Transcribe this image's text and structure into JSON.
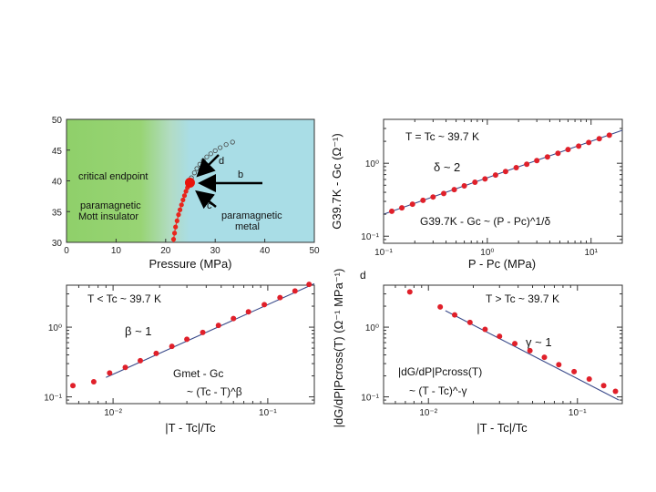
{
  "chart_data": [
    {
      "type": "phase-diagram",
      "xlabel": "Pressure (MPa)",
      "ylabel": "",
      "xlim": [
        0,
        50
      ],
      "ylim": [
        30,
        50
      ],
      "x_ticks": [
        "0",
        "10",
        "20",
        "30",
        "40",
        "50"
      ],
      "y_ticks": [
        "30",
        "35",
        "40",
        "45",
        "50"
      ],
      "regions": [
        {
          "name": "paramagnetic Mott insulator",
          "color": "#8fd06a",
          "lines": [
            "paramagnetic",
            "Mott insulator"
          ]
        },
        {
          "name": "paramagnetic metal",
          "color": "#a9dde6",
          "lines": [
            "paramagnetic",
            "metal"
          ]
        }
      ],
      "boundary_filled": {
        "x": [
          21.6,
          21.8,
          22.0,
          22.3,
          22.6,
          22.9,
          23.2,
          23.5,
          23.8,
          24.1,
          24.4,
          24.7
        ],
        "y": [
          30.5,
          31.5,
          32.5,
          33.5,
          34.5,
          35.3,
          36.1,
          36.9,
          37.6,
          38.3,
          38.9,
          39.5
        ]
      },
      "boundary_open": {
        "x": [
          25.2,
          25.8,
          26.3,
          26.9,
          27.6,
          28.3,
          29.1,
          30.0,
          31.0,
          32.2,
          33.5
        ],
        "y": [
          40.5,
          41.3,
          42.0,
          42.7,
          43.3,
          43.9,
          44.4,
          44.9,
          45.4,
          45.9,
          46.3
        ]
      },
      "critical_endpoint": {
        "x": 24.9,
        "y": 39.7,
        "label": "critical endpoint"
      },
      "arrows": [
        "d",
        "b",
        "c"
      ]
    },
    {
      "type": "scatter",
      "scale": "log-log",
      "xlabel": "P - Pc (MPa)",
      "ylabel": "G39.7K - Gc (Ω⁻¹)",
      "xlim": [
        0.1,
        20
      ],
      "ylim": [
        0.08,
        4
      ],
      "x_ticks": [
        "10⁻¹",
        "10⁰",
        "10¹"
      ],
      "y_ticks": [
        "10⁻¹",
        "10⁰"
      ],
      "annotations": [
        "T = Tc ~ 39.7 K",
        "δ ~ 2",
        "G39.7K - Gc ~ (P - Pc)^1/δ"
      ],
      "fit": {
        "x": [
          0.1,
          20
        ],
        "y": [
          0.2,
          2.83
        ]
      },
      "points": {
        "x": [
          0.12,
          0.15,
          0.19,
          0.24,
          0.3,
          0.38,
          0.48,
          0.6,
          0.76,
          0.95,
          1.2,
          1.5,
          1.9,
          2.4,
          3.0,
          3.8,
          4.8,
          6.0,
          7.6,
          9.5,
          12,
          15
        ],
        "y": [
          0.22,
          0.245,
          0.275,
          0.31,
          0.345,
          0.385,
          0.435,
          0.49,
          0.55,
          0.61,
          0.69,
          0.77,
          0.87,
          0.97,
          1.09,
          1.22,
          1.37,
          1.54,
          1.72,
          1.93,
          2.17,
          2.43
        ]
      }
    },
    {
      "type": "scatter",
      "scale": "log-log",
      "xlabel": "|T - Tc|/Tc",
      "ylabel": "",
      "xlim": [
        0.005,
        0.2
      ],
      "ylim": [
        0.08,
        4
      ],
      "x_ticks": [
        "10⁻²",
        "10⁻¹"
      ],
      "y_ticks": [
        "10⁻¹",
        "10⁰"
      ],
      "annotations": [
        "T < Tc ~ 39.7 K",
        "β ~ 1",
        "Gmet - Gc",
        "~ (Tc - T)^β"
      ],
      "fit": {
        "x": [
          0.009,
          0.2
        ],
        "y": [
          0.19,
          4.2
        ]
      },
      "points": {
        "x": [
          0.0055,
          0.0075,
          0.0095,
          0.012,
          0.015,
          0.019,
          0.024,
          0.03,
          0.038,
          0.048,
          0.06,
          0.075,
          0.095,
          0.12,
          0.15,
          0.185
        ],
        "y": [
          0.145,
          0.165,
          0.22,
          0.265,
          0.33,
          0.42,
          0.53,
          0.67,
          0.84,
          1.06,
          1.33,
          1.66,
          2.1,
          2.65,
          3.3,
          4.1
        ]
      }
    },
    {
      "type": "scatter",
      "scale": "log-log",
      "xlabel": "|T - Tc|/Tc",
      "ylabel": "|dG/dP|Pcross(T) (Ω⁻¹ MPa⁻¹)",
      "xlim": [
        0.005,
        0.2
      ],
      "ylim": [
        0.08,
        4
      ],
      "x_ticks": [
        "10⁻²",
        "10⁻¹"
      ],
      "y_ticks": [
        "10⁻¹",
        "10⁰"
      ],
      "annotations": [
        "T > Tc ~ 39.7 K",
        "γ ~ 1",
        "|dG/dP|Pcross(T)",
        "~ (T - Tc)^-γ",
        "d"
      ],
      "fit": {
        "x": [
          0.013,
          0.19
        ],
        "y": [
          1.72,
          0.09
        ]
      },
      "points": {
        "x": [
          0.0075,
          0.012,
          0.015,
          0.019,
          0.024,
          0.03,
          0.038,
          0.048,
          0.06,
          0.075,
          0.095,
          0.12,
          0.15,
          0.18
        ],
        "y": [
          3.2,
          1.95,
          1.5,
          1.17,
          0.93,
          0.74,
          0.58,
          0.46,
          0.37,
          0.29,
          0.23,
          0.18,
          0.145,
          0.12
        ]
      }
    }
  ]
}
